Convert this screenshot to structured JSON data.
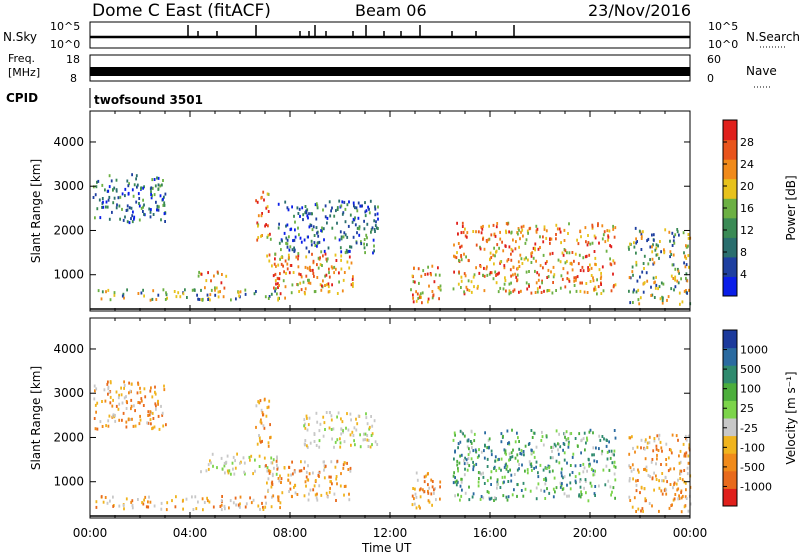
{
  "header": {
    "title": "Dome C East (fitACF)",
    "beam": "Beam 06",
    "date": "23/Nov/2016"
  },
  "strip_panels": {
    "nsky_label": "N.Sky",
    "nsky_ticks": [
      "10^5",
      "10^0"
    ],
    "nsearch_label": "N.Search",
    "nsearch_ticks": [
      "10^5",
      "10^0"
    ],
    "freq_label_line1": "Freq.",
    "freq_label_line2": "[MHz]",
    "freq_ticks": [
      "18",
      "8"
    ],
    "nave_label": "Nave",
    "nave_ticks": [
      "60",
      "0"
    ],
    "cpid_label": "CPID",
    "cpid_value": "twofsound 3501"
  },
  "colors": {
    "power_scale": [
      "#0a1ee8",
      "#1e3fa0",
      "#2a6e6e",
      "#3a8a55",
      "#6cb043",
      "#e7c21c",
      "#f08a1a",
      "#e8541c",
      "#e0201c"
    ],
    "velocity_scale": [
      "#1c3a9c",
      "#2a6aa0",
      "#2f8a6e",
      "#4cae3c",
      "#7cd44a",
      "#c8c8c8",
      "#f0b41e",
      "#f08a1a",
      "#e86a1c",
      "#e0201c"
    ]
  },
  "chart_data": [
    {
      "type": "heatmap",
      "name_key": "power",
      "ylabel": "Slant Range [km]",
      "yticks": [
        1000,
        2000,
        3000,
        4000
      ],
      "ylim": [
        180,
        4700
      ],
      "xlim_hours": [
        0,
        24
      ],
      "xticks": [
        "00:00",
        "04:00",
        "08:00",
        "12:00",
        "16:00",
        "20:00",
        "00:00"
      ],
      "colorbar_label": "Power [dB]",
      "colorbar_ticks": [
        "28",
        "24",
        "20",
        "16",
        "12",
        "8",
        "4"
      ],
      "echo_regions": [
        {
          "t0": 0.1,
          "t1": 3.0,
          "r0": 2200,
          "r1": 3300,
          "level": "low"
        },
        {
          "t0": 0.2,
          "t1": 7.8,
          "r0": 450,
          "r1": 700,
          "level": "mid"
        },
        {
          "t0": 4.3,
          "t1": 5.5,
          "r0": 700,
          "r1": 1100,
          "level": "high"
        },
        {
          "t0": 6.6,
          "t1": 7.2,
          "r0": 1800,
          "r1": 2900,
          "level": "high"
        },
        {
          "t0": 7.0,
          "t1": 10.5,
          "r0": 600,
          "r1": 1500,
          "level": "high"
        },
        {
          "t0": 7.5,
          "t1": 11.5,
          "r0": 1500,
          "r1": 2700,
          "level": "low"
        },
        {
          "t0": 12.8,
          "t1": 14.0,
          "r0": 400,
          "r1": 1300,
          "level": "high"
        },
        {
          "t0": 14.5,
          "t1": 21.0,
          "r0": 600,
          "r1": 2200,
          "level": "high"
        },
        {
          "t0": 21.5,
          "t1": 24.0,
          "r0": 350,
          "r1": 2100,
          "level": "mid"
        }
      ]
    },
    {
      "type": "heatmap",
      "name_key": "velocity",
      "ylabel": "Slant Range [km]",
      "yticks": [
        1000,
        2000,
        3000,
        4000
      ],
      "ylim": [
        180,
        4700
      ],
      "xlim_hours": [
        0,
        24
      ],
      "xticks": [
        "00:00",
        "04:00",
        "08:00",
        "12:00",
        "16:00",
        "20:00",
        "00:00"
      ],
      "xlabel": "Time UT",
      "colorbar_label": "Velocity [m s⁻¹]",
      "colorbar_ticks": [
        "1000",
        "500",
        "100",
        "25",
        "-25",
        "-100",
        "-500",
        "-1000"
      ],
      "echo_regions": [
        {
          "t0": 0.1,
          "t1": 3.0,
          "r0": 2200,
          "r1": 3300,
          "level": "neg"
        },
        {
          "t0": 0.2,
          "t1": 7.8,
          "r0": 400,
          "r1": 700,
          "level": "neg"
        },
        {
          "t0": 4.3,
          "t1": 7.5,
          "r0": 1200,
          "r1": 1700,
          "level": "zero"
        },
        {
          "t0": 6.6,
          "t1": 7.2,
          "r0": 1800,
          "r1": 2900,
          "level": "neg"
        },
        {
          "t0": 7.0,
          "t1": 10.5,
          "r0": 600,
          "r1": 1500,
          "level": "neg"
        },
        {
          "t0": 8.5,
          "t1": 11.5,
          "r0": 1800,
          "r1": 2600,
          "level": "zero"
        },
        {
          "t0": 12.8,
          "t1": 14.0,
          "r0": 400,
          "r1": 1300,
          "level": "neg"
        },
        {
          "t0": 14.5,
          "t1": 21.0,
          "r0": 600,
          "r1": 2200,
          "level": "pos"
        },
        {
          "t0": 21.5,
          "t1": 24.0,
          "r0": 350,
          "r1": 2100,
          "level": "neg"
        }
      ]
    }
  ]
}
